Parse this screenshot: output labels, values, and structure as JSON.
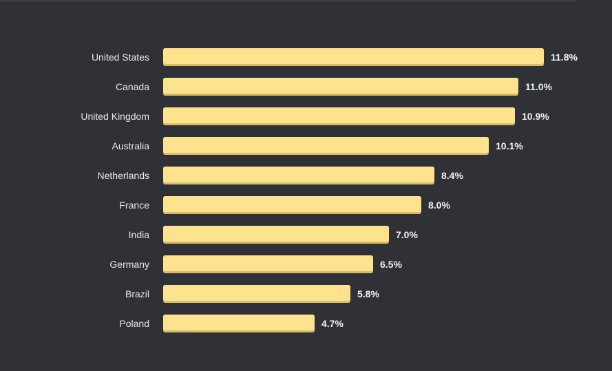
{
  "chart_data": {
    "type": "bar",
    "orientation": "horizontal",
    "title": "",
    "xlabel": "",
    "ylabel": "",
    "categories": [
      "United States",
      "Canada",
      "United Kingdom",
      "Australia",
      "Netherlands",
      "France",
      "India",
      "Germany",
      "Brazil",
      "Poland"
    ],
    "values": [
      11.8,
      11.0,
      10.9,
      10.1,
      8.4,
      8.0,
      7.0,
      6.5,
      5.8,
      4.7
    ],
    "value_labels": [
      "11.8%",
      "11.0%",
      "10.9%",
      "10.1%",
      "8.4%",
      "8.0%",
      "7.0%",
      "6.5%",
      "5.8%",
      "4.7%"
    ],
    "unit": "%",
    "xlim": [
      0,
      11.8
    ],
    "grid": false,
    "legend": "none",
    "colors": {
      "background": "#2f3136",
      "bar": "#fde38e",
      "bar_shadow": "#d9bd6a",
      "label": "#e8e8e8"
    }
  }
}
